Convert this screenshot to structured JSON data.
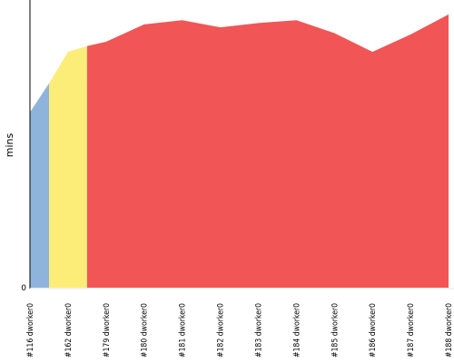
{
  "chart_data": {
    "type": "area",
    "ylabel": "mins",
    "y_tick_labels": [
      "0"
    ],
    "ylim": [
      0,
      100
    ],
    "categories": [
      "#116 dworker0",
      "#162 dworker0",
      "#179 dworker0",
      "#180 dworker0",
      "#181 dworker0",
      "#182 dworker0",
      "#183 dworker0",
      "#184 dworker0",
      "#185 dworker0",
      "#186 dworker0",
      "#187 dworker0",
      "#188 dworker0"
    ],
    "series": [
      {
        "color": "#8fb4dc",
        "points": [
          {
            "x": 0,
            "y": 61
          },
          {
            "x": 0.5,
            "y": 71
          },
          {
            "x": 0.5,
            "y": 0
          },
          {
            "x": 0,
            "y": 0
          }
        ]
      },
      {
        "color": "#fced79",
        "points": [
          {
            "x": 0.5,
            "y": 71
          },
          {
            "x": 1,
            "y": 82
          },
          {
            "x": 1.5,
            "y": 84
          },
          {
            "x": 1.5,
            "y": 0
          },
          {
            "x": 0.5,
            "y": 0
          }
        ]
      },
      {
        "color": "#f25555",
        "points": [
          {
            "x": 1.5,
            "y": 84
          },
          {
            "x": 2,
            "y": 85.5
          },
          {
            "x": 3,
            "y": 91.5
          },
          {
            "x": 4,
            "y": 93
          },
          {
            "x": 5,
            "y": 90.5
          },
          {
            "x": 6,
            "y": 92
          },
          {
            "x": 7,
            "y": 93
          },
          {
            "x": 8,
            "y": 88.5
          },
          {
            "x": 9,
            "y": 82
          },
          {
            "x": 10,
            "y": 88
          },
          {
            "x": 11,
            "y": 95
          },
          {
            "x": 11,
            "y": 0
          },
          {
            "x": 1.5,
            "y": 0
          }
        ]
      }
    ]
  }
}
